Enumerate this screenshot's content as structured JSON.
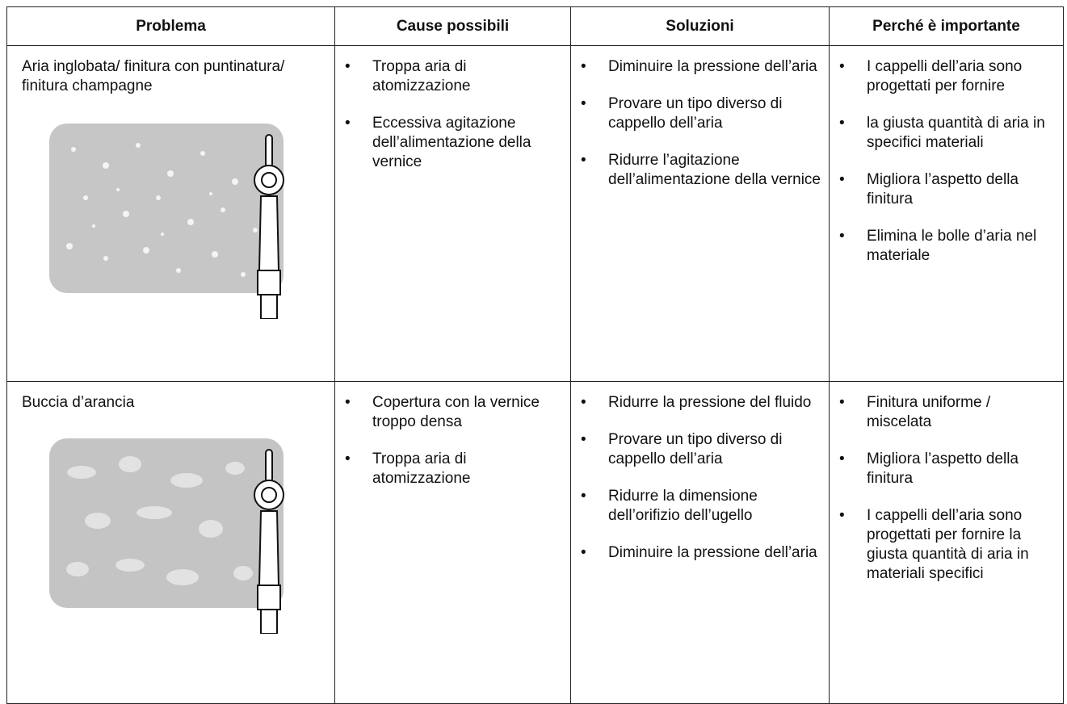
{
  "table": {
    "header": [
      "Problema",
      "Cause possibili",
      "Soluzioni",
      "Perché è importante"
    ],
    "rows": [
      {
        "problem": "Aria inglobata/ finitura con puntinatura/ finitura champagne",
        "causes": [
          "Troppa aria di atomizzazione",
          "Eccessiva agitazione dell’alimentazione della vernice"
        ],
        "solutions": [
          "Diminuire la pressione dell’aria",
          "Provare un tipo diverso di cappello dell’aria",
          "Ridurre l’agitazione dell’alimentazione della vernice"
        ],
        "importance": [
          "I cappelli dell’aria sono progettati per fornire",
          "la giusta quantità di aria in specifici materiali",
          "Migliora l’aspetto della finitura",
          "Elimina le bolle d’aria nel materiale"
        ]
      },
      {
        "problem": "Buccia d’arancia",
        "causes": [
          "Copertura con la vernice troppo densa",
          "Troppa aria di atomizzazione"
        ],
        "solutions": [
          "Ridurre la pressione del fluido",
          "Provare un tipo diverso di cappello dell’aria",
          "Ridurre la dimensione dell’orifizio dell’ugello",
          "Diminuire la pressione dell’aria"
        ],
        "importance": [
          "Finitura uniforme / miscelata",
          "Migliora l’aspetto della finitura",
          "I cappelli dell’aria sono progettati per fornire la giusta quantità di aria in materiali specifici"
        ]
      }
    ]
  }
}
